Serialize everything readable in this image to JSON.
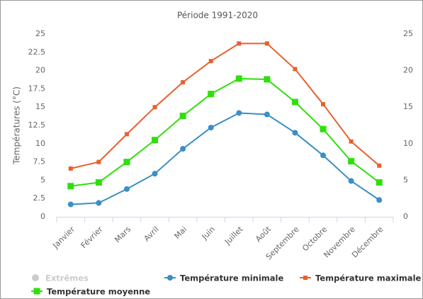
{
  "chart_data": {
    "type": "line",
    "title": "Période 1991-2020",
    "y_label": "Températures (°C)",
    "categories": [
      "Janvier",
      "Février",
      "Mars",
      "Avril",
      "Mai",
      "Juin",
      "Juillet",
      "Août",
      "Septembre",
      "Octobre",
      "Novembre",
      "Décembre"
    ],
    "series": [
      {
        "name": "Température minimale",
        "color": "#3a8fc4",
        "marker": "circle",
        "values": [
          1.7,
          1.9,
          3.8,
          5.9,
          9.3,
          12.2,
          14.2,
          14.0,
          11.5,
          8.4,
          4.9,
          2.3
        ]
      },
      {
        "name": "Température maximale",
        "color": "#e8602c",
        "marker": "small-square",
        "values": [
          6.6,
          7.5,
          11.3,
          15.0,
          18.4,
          21.3,
          23.7,
          23.7,
          20.2,
          15.4,
          10.3,
          7.0
        ]
      },
      {
        "name": "Température moyenne",
        "color": "#2ee00a",
        "marker": "square",
        "values": [
          4.2,
          4.7,
          7.5,
          10.5,
          13.8,
          16.8,
          18.9,
          18.8,
          15.7,
          12.0,
          7.6,
          4.7
        ]
      }
    ],
    "inactive_legend": "Extrêmes",
    "ylim": [
      0,
      25
    ],
    "yticks": [
      0,
      2.5,
      5,
      7.5,
      10,
      12.5,
      15,
      17.5,
      20,
      22.5,
      25
    ],
    "y2lim": [
      0,
      25
    ],
    "y2ticks": [
      0,
      5,
      10,
      15,
      20,
      25
    ],
    "grid": false
  }
}
